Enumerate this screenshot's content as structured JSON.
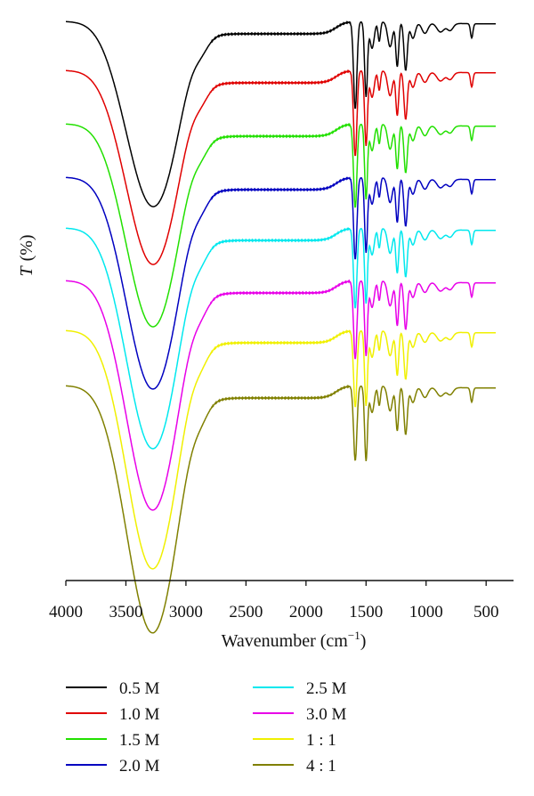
{
  "chart_data": {
    "type": "line",
    "xlabel": "Wavenumber",
    "xunit": "cm",
    "xunit_exp": "−1",
    "ylabel_var": "T",
    "ylabel_unit": "(%)",
    "xlim": [
      4000,
      420
    ],
    "xticks": [
      4000,
      3500,
      3000,
      2500,
      2000,
      1500,
      1000,
      500
    ],
    "legend_placement": "bottom",
    "series": [
      {
        "name": "0.5 M",
        "color": "#000000"
      },
      {
        "name": "1.0 M",
        "color": "#e00000"
      },
      {
        "name": "1.5 M",
        "color": "#22e000"
      },
      {
        "name": "2.0 M",
        "color": "#0000c0"
      },
      {
        "name": "2.5 M",
        "color": "#00e8ee"
      },
      {
        "name": "3.0 M",
        "color": "#e800e8"
      },
      {
        "name": "1 : 1",
        "color": "#f0f000"
      },
      {
        "name": "4 : 1",
        "color": "#808000"
      }
    ]
  }
}
